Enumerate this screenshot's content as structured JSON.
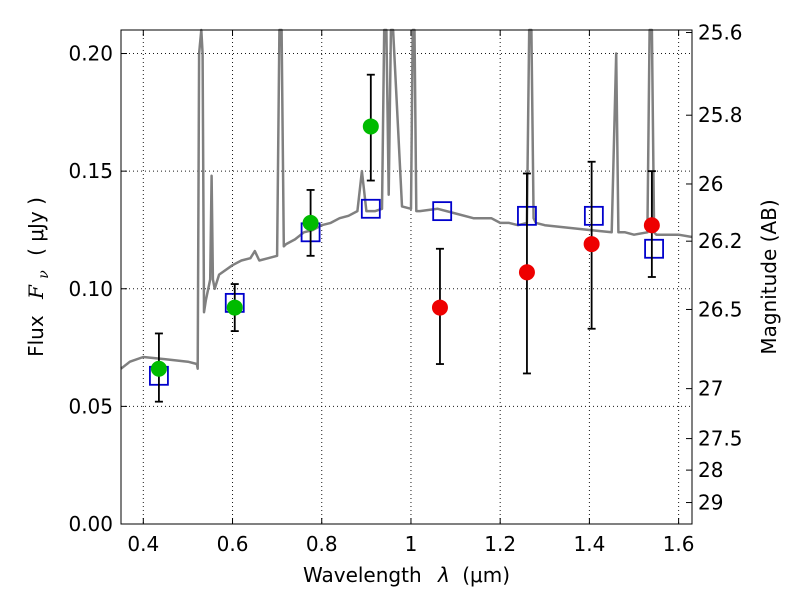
{
  "chart_data": {
    "type": "scatter",
    "xlabel_prefix": "Wavelength",
    "xlabel_symbol": "λ",
    "xlabel_unit": "(μm)",
    "ylabel_prefix": "Flux",
    "ylabel_symbol": "F",
    "ylabel_subscript": "ν",
    "ylabel_unit": "( μJy )",
    "y2label": "Magnitude (AB)",
    "xlim": [
      0.35,
      1.63
    ],
    "ylim": [
      0.0,
      0.21
    ],
    "grid": true,
    "x_ticks": [
      0.4,
      0.6,
      0.8,
      1.0,
      1.2,
      1.4,
      1.6
    ],
    "x_tick_labels": [
      "0.4",
      "0.6",
      "0.8",
      "1",
      "1.2",
      "1.4",
      "1.6"
    ],
    "y_ticks": [
      0.0,
      0.05,
      0.1,
      0.15,
      0.2
    ],
    "y_tick_labels": [
      "0.00",
      "0.05",
      "0.10",
      "0.15",
      "0.20"
    ],
    "y2_ticks": [
      {
        "mag": 25.6,
        "label": "25.6"
      },
      {
        "mag": 25.8,
        "label": "25.8"
      },
      {
        "mag": 26.0,
        "label": "26"
      },
      {
        "mag": 26.2,
        "label": "26.2"
      },
      {
        "mag": 26.5,
        "label": "26.5"
      },
      {
        "mag": 27.0,
        "label": "27"
      },
      {
        "mag": 27.5,
        "label": "27.5"
      },
      {
        "mag": 28.0,
        "label": "28"
      },
      {
        "mag": 29.0,
        "label": "29"
      }
    ],
    "series": [
      {
        "kind": "line",
        "color": "#808080",
        "x": [
          0.35,
          0.37,
          0.4,
          0.45,
          0.5,
          0.52,
          0.522,
          0.525,
          0.53,
          0.533,
          0.536,
          0.54,
          0.55,
          0.553,
          0.556,
          0.56,
          0.57,
          0.6,
          0.62,
          0.64,
          0.65,
          0.66,
          0.68,
          0.7,
          0.705,
          0.71,
          0.715,
          0.72,
          0.74,
          0.76,
          0.78,
          0.8,
          0.82,
          0.84,
          0.86,
          0.88,
          0.89,
          0.9,
          0.92,
          0.935,
          0.94,
          0.945,
          0.95,
          0.955,
          0.96,
          0.98,
          1.0,
          1.004,
          1.008,
          1.012,
          1.02,
          1.06,
          1.1,
          1.14,
          1.18,
          1.2,
          1.22,
          1.24,
          1.26,
          1.265,
          1.27,
          1.275,
          1.28,
          1.3,
          1.35,
          1.4,
          1.45,
          1.46,
          1.465,
          1.47,
          1.48,
          1.5,
          1.53,
          1.535,
          1.54,
          1.545,
          1.55,
          1.58,
          1.6,
          1.63
        ],
        "y": [
          0.066,
          0.069,
          0.071,
          0.07,
          0.069,
          0.068,
          0.066,
          0.2,
          0.21,
          0.2,
          0.09,
          0.095,
          0.104,
          0.148,
          0.104,
          0.1,
          0.106,
          0.11,
          0.112,
          0.113,
          0.116,
          0.112,
          0.113,
          0.114,
          0.21,
          0.21,
          0.118,
          0.119,
          0.121,
          0.124,
          0.125,
          0.127,
          0.128,
          0.13,
          0.131,
          0.133,
          0.15,
          0.133,
          0.133,
          0.134,
          0.21,
          0.21,
          0.14,
          0.21,
          0.21,
          0.135,
          0.134,
          0.21,
          0.21,
          0.133,
          0.133,
          0.134,
          0.132,
          0.13,
          0.13,
          0.128,
          0.128,
          0.127,
          0.128,
          0.21,
          0.21,
          0.13,
          0.128,
          0.127,
          0.126,
          0.125,
          0.124,
          0.2,
          0.124,
          0.124,
          0.124,
          0.123,
          0.124,
          0.21,
          0.21,
          0.124,
          0.123,
          0.123,
          0.123,
          0.122
        ]
      },
      {
        "kind": "marker",
        "marker": "square-open",
        "color": "#0000cc",
        "x": [
          0.435,
          0.605,
          0.775,
          0.91,
          1.07,
          1.26,
          1.41,
          1.545
        ],
        "y": [
          0.063,
          0.094,
          0.124,
          0.134,
          0.133,
          0.131,
          0.131,
          0.117
        ]
      },
      {
        "kind": "marker-errorbar",
        "marker": "circle",
        "color": "#00bb00",
        "x": [
          0.435,
          0.605,
          0.775,
          0.91
        ],
        "y": [
          0.066,
          0.092,
          0.128,
          0.169
        ],
        "yerr_low": [
          0.052,
          0.082,
          0.114,
          0.146
        ],
        "yerr_high": [
          0.081,
          0.102,
          0.142,
          0.191
        ]
      },
      {
        "kind": "marker-errorbar",
        "marker": "circle",
        "color": "#ee0000",
        "x": [
          1.065,
          1.26,
          1.405,
          1.54
        ],
        "y": [
          0.092,
          0.107,
          0.119,
          0.127
        ],
        "yerr_low": [
          0.068,
          0.064,
          0.083,
          0.105
        ],
        "yerr_high": [
          0.117,
          0.149,
          0.154,
          0.15
        ]
      }
    ]
  }
}
